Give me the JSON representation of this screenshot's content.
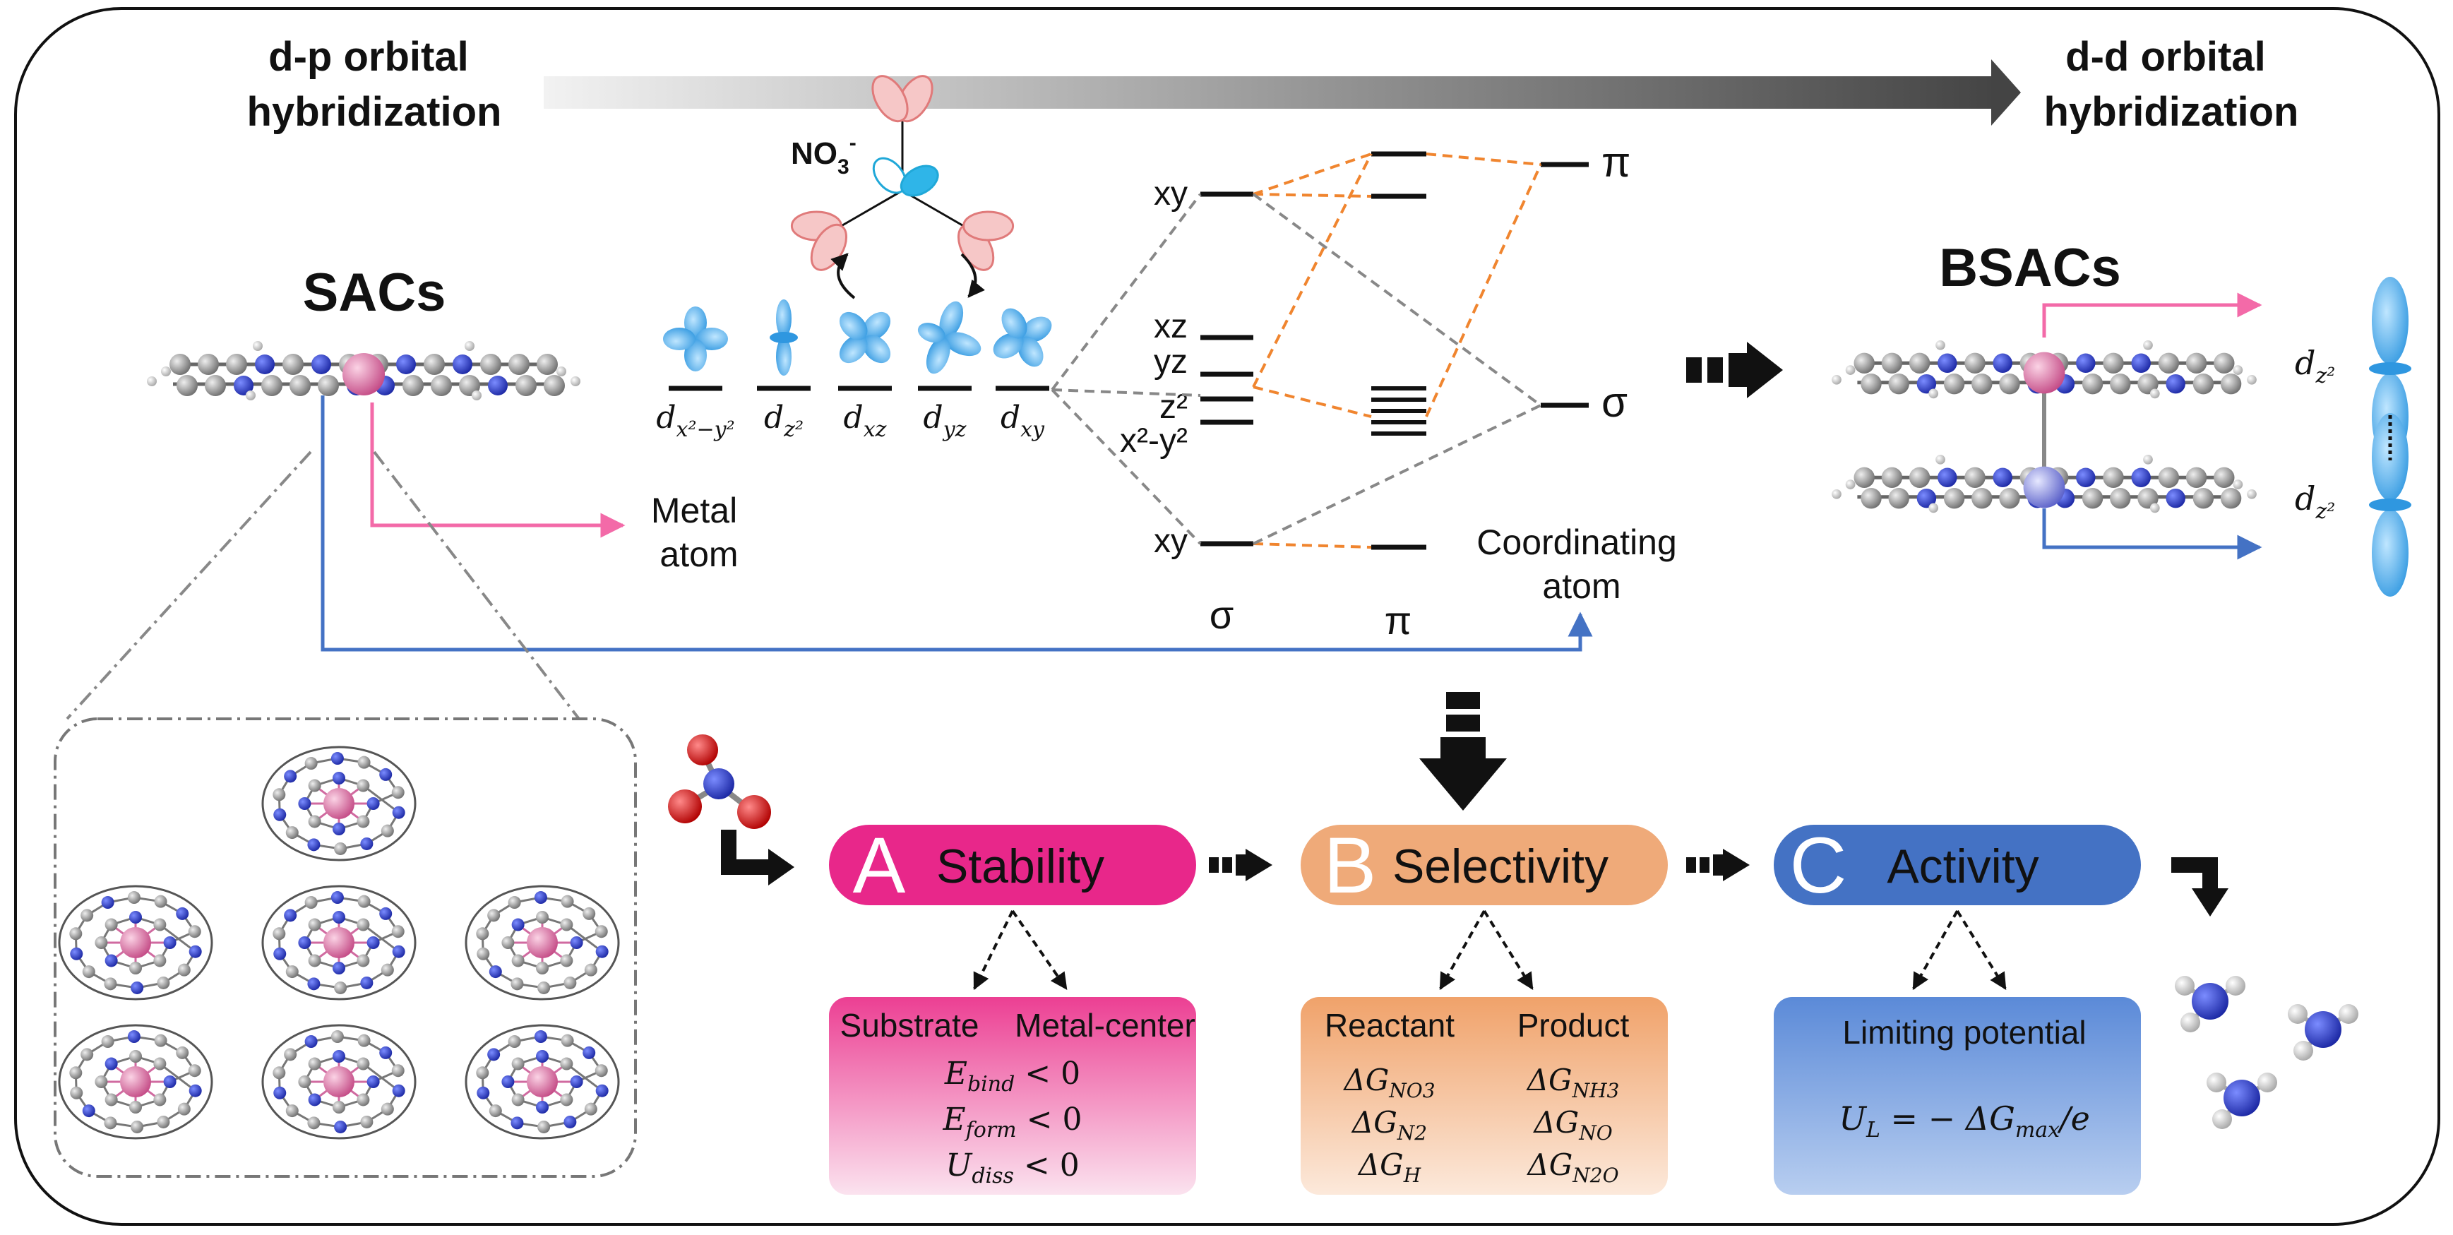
{
  "header": {
    "left": [
      "d-p orbital",
      "hybridization"
    ],
    "right": [
      "d-d orbital",
      "hybridization"
    ]
  },
  "sacs": {
    "title": "SACs",
    "metal_label": [
      "Metal",
      "atom"
    ],
    "coord_label": [
      "Coordinating",
      "atom"
    ]
  },
  "nitrate": {
    "label": "NO",
    "sub": "3",
    "sup": "-"
  },
  "d_orbitals": [
    {
      "base": "d",
      "sub": "x²−y²"
    },
    {
      "base": "d",
      "sub": "z²"
    },
    {
      "base": "d",
      "sub": "xz"
    },
    {
      "base": "d",
      "sub": "yz"
    },
    {
      "base": "d",
      "sub": "xy"
    }
  ],
  "levels": {
    "left": [
      "xy",
      "xz",
      "yz",
      "z²",
      "x²-y²",
      "xy"
    ],
    "sigma": "σ",
    "pi": "π",
    "right_pi": "π",
    "right_sigma": "σ"
  },
  "bsacs": {
    "title": "BSACs",
    "dz2_top": {
      "base": "d",
      "sub": "z²"
    },
    "dz2_bottom": {
      "base": "d",
      "sub": "z²"
    }
  },
  "stages": [
    {
      "letter": "A",
      "title": "Stability",
      "color": "#e8278a",
      "box_cols": [
        "Substrate",
        "Metal-center"
      ],
      "equations": [
        {
          "base": "E",
          "sub": "bind",
          "rest": " < 0"
        },
        {
          "base": "E",
          "sub": "form",
          "rest": " < 0"
        },
        {
          "base": "U",
          "sub": "diss",
          "rest": " < 0"
        }
      ]
    },
    {
      "letter": "B",
      "title": "Selectivity",
      "color": "#efaa79",
      "box_cols": [
        "Reactant",
        "Product"
      ],
      "left_terms": [
        {
          "base": "ΔG",
          "sub": "NO3"
        },
        {
          "base": "ΔG",
          "sub": "N2"
        },
        {
          "base": "ΔG",
          "sub": "H"
        }
      ],
      "right_terms": [
        {
          "base": "ΔG",
          "sub": "NH3"
        },
        {
          "base": "ΔG",
          "sub": "NO"
        },
        {
          "base": "ΔG",
          "sub": "N2O"
        }
      ]
    },
    {
      "letter": "C",
      "title": "Activity",
      "color": "#4472c4",
      "box_title": "Limiting potential",
      "equation": {
        "lhs": "U",
        "lhs_sub": "L",
        "mid": " = − ΔG",
        "mid_sub": "max",
        "rhs": "/e"
      }
    }
  ],
  "colors": {
    "pink": "#e8278a",
    "orange": "#efaa79",
    "blue": "#4472c4",
    "orbital": "#4fb2ee",
    "nitrogen": "#2f3fc6",
    "carbon": "#8d8d8d",
    "metal": "#e079a7",
    "metal2": "#8a8ee6",
    "oxygen": "#e01515",
    "arrow_pink": "#f36aa8",
    "arrow_blue": "#4472c4",
    "dash_orange": "#f0852f",
    "dash_gray": "#888888"
  }
}
